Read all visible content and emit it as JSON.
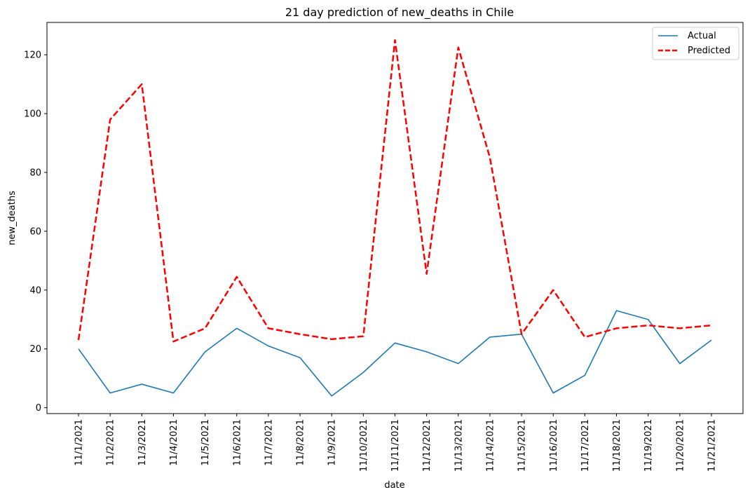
{
  "chart_data": {
    "type": "line",
    "title": "21 day prediction of new_deaths in Chile",
    "xlabel": "date",
    "ylabel": "new_deaths",
    "categories": [
      "11/1/2021",
      "11/2/2021",
      "11/3/2021",
      "11/4/2021",
      "11/5/2021",
      "11/6/2021",
      "11/7/2021",
      "11/8/2021",
      "11/9/2021",
      "11/10/2021",
      "11/11/2021",
      "11/12/2021",
      "11/13/2021",
      "11/14/2021",
      "11/15/2021",
      "11/16/2021",
      "11/17/2021",
      "11/18/2021",
      "11/19/2021",
      "11/20/2021",
      "11/21/2021"
    ],
    "ylim": [
      -2,
      131
    ],
    "yticks": [
      0,
      20,
      40,
      60,
      80,
      100,
      120
    ],
    "grid": false,
    "legend_position": "top-right",
    "series": [
      {
        "name": "Actual",
        "color": "#1f77b4",
        "style": "solid",
        "values": [
          20,
          5,
          8,
          5,
          19,
          27,
          21,
          17,
          4,
          12,
          22,
          19,
          15,
          24,
          25,
          5,
          11,
          33,
          30,
          15,
          23
        ]
      },
      {
        "name": "Predicted",
        "color": "#ff0000",
        "style": "dashed",
        "values": [
          23,
          98,
          110,
          22.5,
          27,
          44.5,
          27,
          25,
          23.3,
          24.3,
          125,
          45.5,
          122.5,
          85,
          25,
          40,
          24,
          27,
          28,
          27,
          28
        ]
      }
    ]
  }
}
